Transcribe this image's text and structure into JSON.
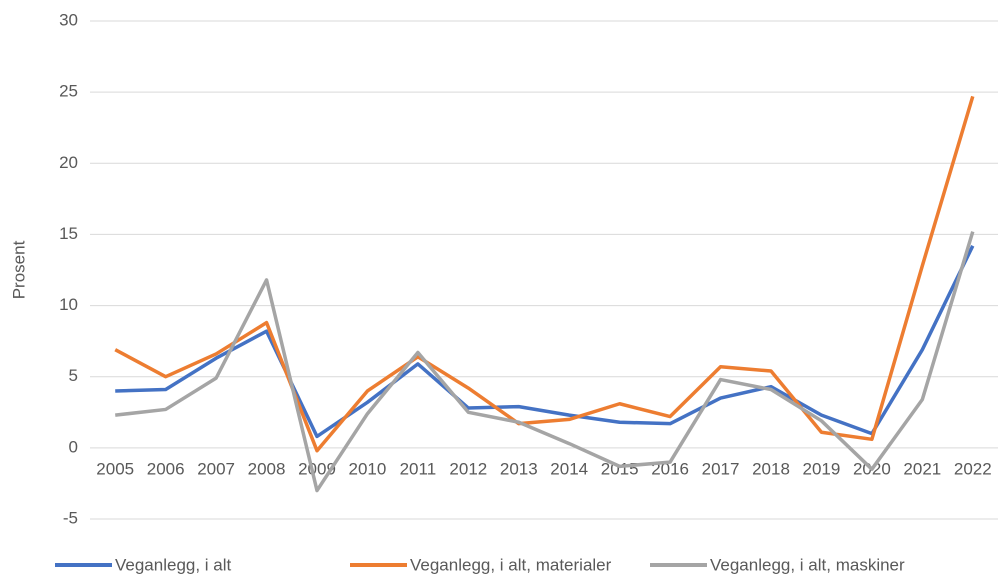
{
  "chart_data": {
    "type": "line",
    "y_label": "Prosent",
    "categories": [
      "2005",
      "2006",
      "2007",
      "2008",
      "2009",
      "2010",
      "2011",
      "2012",
      "2013",
      "2014",
      "2015",
      "2016",
      "2017",
      "2018",
      "2019",
      "2020",
      "2021",
      "2022"
    ],
    "series": [
      {
        "name": "Veganlegg, i alt",
        "color": "#4472c4",
        "values": [
          4.0,
          4.1,
          6.3,
          8.2,
          0.8,
          3.2,
          5.9,
          2.8,
          2.9,
          2.3,
          1.8,
          1.7,
          3.5,
          4.3,
          2.3,
          1.0,
          6.9,
          14.2
        ]
      },
      {
        "name": "Veganlegg, i alt, materialer",
        "color": "#ed7d31",
        "values": [
          6.9,
          5.0,
          6.6,
          8.8,
          -0.2,
          4.0,
          6.4,
          4.2,
          1.7,
          2.0,
          3.1,
          2.2,
          5.7,
          5.4,
          1.1,
          0.6,
          12.8,
          24.7
        ]
      },
      {
        "name": "Veganlegg, i alt, maskiner",
        "color": "#a5a5a5",
        "values": [
          2.3,
          2.7,
          4.9,
          11.8,
          -3.0,
          2.4,
          6.7,
          2.5,
          1.8,
          0.3,
          -1.3,
          -1.0,
          4.8,
          4.1,
          1.9,
          -1.5,
          3.4,
          15.2
        ]
      }
    ],
    "ylim": [
      -5,
      30
    ],
    "yticks": [
      -5,
      0,
      5,
      10,
      15,
      20,
      25,
      30
    ],
    "grid": true
  }
}
